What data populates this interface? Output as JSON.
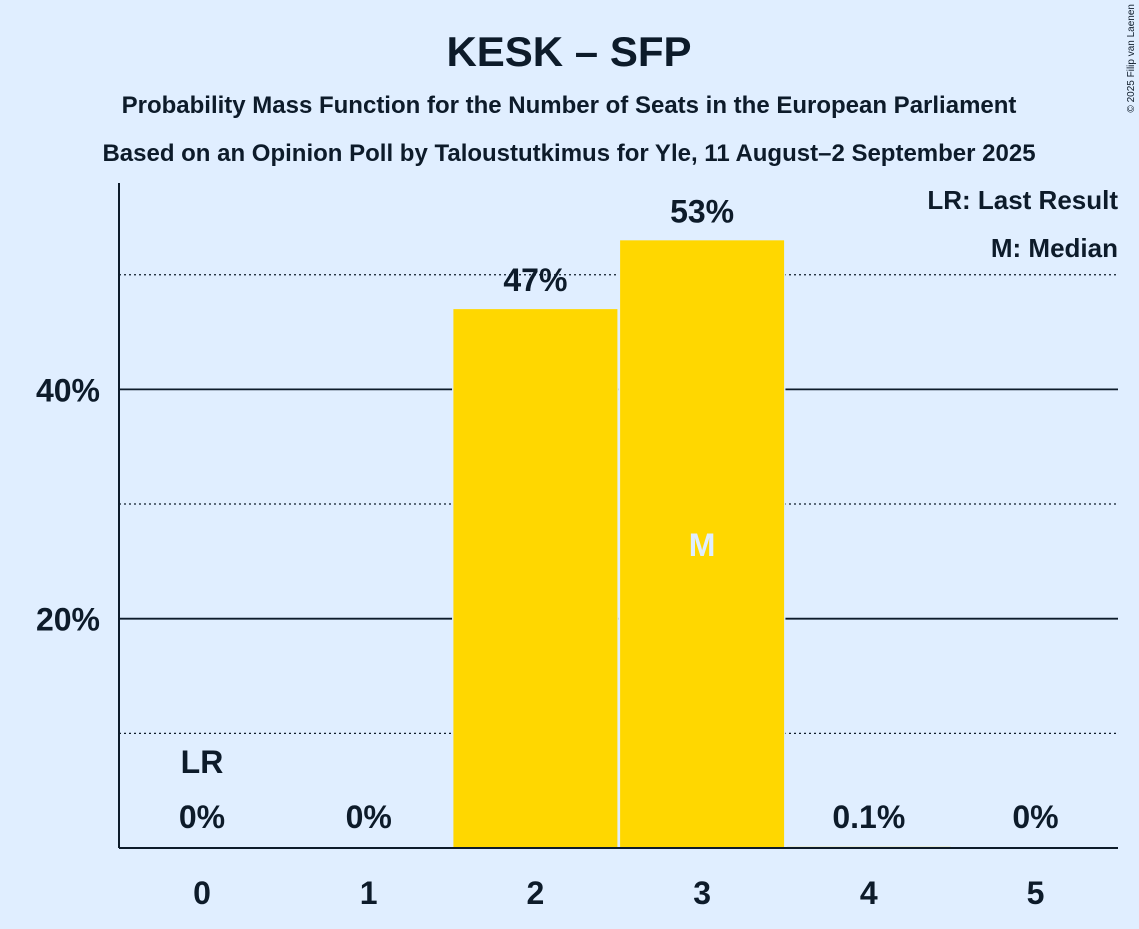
{
  "chart_data": {
    "type": "bar",
    "title": "KESK – SFP",
    "subtitle_lines": [
      "Probability Mass Function for the Number of Seats in the European Parliament",
      "Based on an Opinion Poll by Taloustutkimus for Yle, 11 August–2 September 2025"
    ],
    "categories": [
      "0",
      "1",
      "2",
      "3",
      "4",
      "5"
    ],
    "values": [
      0,
      0,
      47,
      53,
      0.1,
      0
    ],
    "data_labels": [
      "0%",
      "0%",
      "47%",
      "53%",
      "0.1%",
      "0%"
    ],
    "ylim": [
      0,
      58
    ],
    "y_major_ticks": [
      {
        "value": 20,
        "label": "20%"
      },
      {
        "value": 40,
        "label": "40%"
      }
    ],
    "y_minor_gridlines": [
      10,
      30,
      50
    ],
    "last_result": {
      "category": "0",
      "marker": "LR"
    },
    "median": {
      "category": "3",
      "marker": "M"
    },
    "legend": [
      "LR: Last Result",
      "M: Median"
    ],
    "legend_position": "top-right",
    "bar_color": "#ffd700",
    "background_color": "#e0eeff",
    "copyright": "© 2025 Filip van Laenen"
  }
}
